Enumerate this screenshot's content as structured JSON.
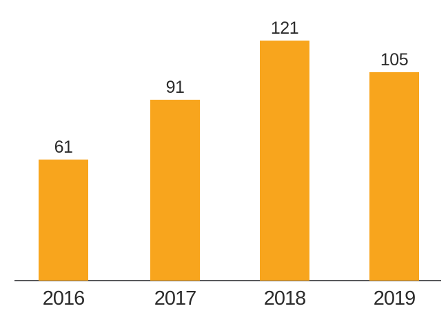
{
  "chart_data": {
    "type": "bar",
    "categories": [
      "2016",
      "2017",
      "2018",
      "2019"
    ],
    "values": [
      61,
      91,
      121,
      105
    ],
    "data_labels": [
      "61",
      "91",
      "121",
      "105"
    ],
    "title": "",
    "xlabel": "",
    "ylabel": "",
    "ylim": [
      0,
      130
    ],
    "grid": false,
    "legend": false,
    "bar_color": "#F8A51D",
    "label_color": "#2B2B2B",
    "axis_line_color": "#58595B",
    "background_color": "#FFFFFF",
    "layout_hints": "single series, no y-axis ticks, value labels above bars, category labels below baseline axis"
  }
}
